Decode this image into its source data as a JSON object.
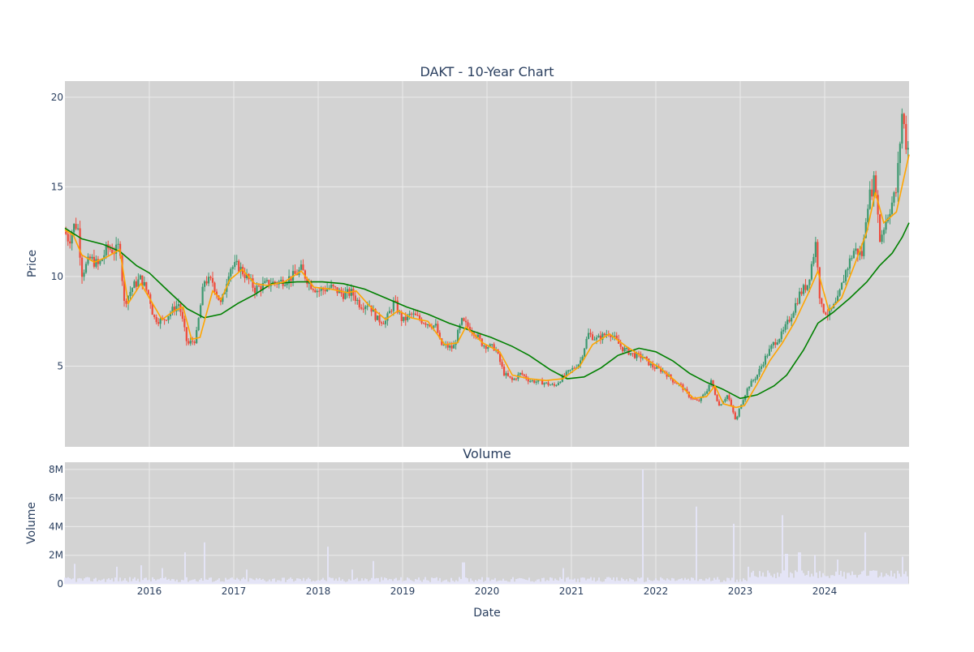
{
  "colors": {
    "plot_bg": "#d3d3d3",
    "grid": "#ebebeb",
    "candle_up": "#3d9970",
    "candle_down": "#ef4a3b",
    "ma_short": "#ffa500",
    "ma_long": "#008000",
    "volume": "#e6e6fa",
    "text": "#2a3f5f"
  },
  "chart_data": [
    {
      "type": "candlestick",
      "title": "DAKT - 10-Year Chart",
      "xlabel": "",
      "ylabel": "Price",
      "xlim": [
        2015.0,
        2025.0
      ],
      "ylim": [
        0.5,
        20.9
      ],
      "yticks": [
        5,
        10,
        15,
        20
      ],
      "grid": true,
      "legend": "none",
      "price_points": [
        [
          2015.0,
          12.5
        ],
        [
          2015.05,
          12.0
        ],
        [
          2015.1,
          12.8
        ],
        [
          2015.15,
          12.9
        ],
        [
          2015.2,
          10.2
        ],
        [
          2015.3,
          11.0
        ],
        [
          2015.4,
          10.6
        ],
        [
          2015.5,
          11.6
        ],
        [
          2015.6,
          11.4
        ],
        [
          2015.65,
          11.8
        ],
        [
          2015.7,
          8.5
        ],
        [
          2015.8,
          9.4
        ],
        [
          2015.9,
          9.9
        ],
        [
          2016.0,
          8.9
        ],
        [
          2016.05,
          7.7
        ],
        [
          2016.15,
          7.5
        ],
        [
          2016.25,
          8.0
        ],
        [
          2016.35,
          8.5
        ],
        [
          2016.45,
          6.2
        ],
        [
          2016.55,
          6.5
        ],
        [
          2016.65,
          9.8
        ],
        [
          2016.75,
          9.7
        ],
        [
          2016.85,
          8.4
        ],
        [
          2016.95,
          10.5
        ],
        [
          2017.05,
          10.6
        ],
        [
          2017.15,
          10.0
        ],
        [
          2017.25,
          9.3
        ],
        [
          2017.4,
          9.6
        ],
        [
          2017.55,
          9.7
        ],
        [
          2017.7,
          10.0
        ],
        [
          2017.8,
          10.4
        ],
        [
          2017.9,
          9.6
        ],
        [
          2018.0,
          9.2
        ],
        [
          2018.15,
          9.4
        ],
        [
          2018.3,
          9.0
        ],
        [
          2018.4,
          9.1
        ],
        [
          2018.5,
          8.4
        ],
        [
          2018.6,
          8.5
        ],
        [
          2018.7,
          7.6
        ],
        [
          2018.8,
          7.5
        ],
        [
          2018.9,
          8.6
        ],
        [
          2019.0,
          7.5
        ],
        [
          2019.1,
          7.9
        ],
        [
          2019.25,
          7.5
        ],
        [
          2019.4,
          7.2
        ],
        [
          2019.45,
          6.2
        ],
        [
          2019.6,
          6.0
        ],
        [
          2019.7,
          7.5
        ],
        [
          2019.85,
          6.9
        ],
        [
          2019.95,
          6.2
        ],
        [
          2020.1,
          6.0
        ],
        [
          2020.2,
          4.6
        ],
        [
          2020.3,
          4.2
        ],
        [
          2020.4,
          4.6
        ],
        [
          2020.5,
          4.2
        ],
        [
          2020.65,
          4.1
        ],
        [
          2020.8,
          3.9
        ],
        [
          2020.9,
          4.4
        ],
        [
          2021.0,
          4.8
        ],
        [
          2021.1,
          5.2
        ],
        [
          2021.2,
          6.8
        ],
        [
          2021.3,
          6.5
        ],
        [
          2021.45,
          6.9
        ],
        [
          2021.6,
          6.0
        ],
        [
          2021.75,
          5.6
        ],
        [
          2021.85,
          5.5
        ],
        [
          2021.95,
          5.0
        ],
        [
          2022.1,
          4.7
        ],
        [
          2022.2,
          4.2
        ],
        [
          2022.3,
          3.9
        ],
        [
          2022.4,
          3.3
        ],
        [
          2022.5,
          3.0
        ],
        [
          2022.6,
          3.6
        ],
        [
          2022.65,
          4.2
        ],
        [
          2022.75,
          2.8
        ],
        [
          2022.85,
          3.4
        ],
        [
          2022.95,
          1.9
        ],
        [
          2023.0,
          2.8
        ],
        [
          2023.1,
          3.9
        ],
        [
          2023.2,
          4.5
        ],
        [
          2023.3,
          5.5
        ],
        [
          2023.4,
          6.3
        ],
        [
          2023.5,
          6.8
        ],
        [
          2023.6,
          7.8
        ],
        [
          2023.7,
          9.0
        ],
        [
          2023.8,
          9.6
        ],
        [
          2023.9,
          12.0
        ],
        [
          2023.95,
          8.3
        ],
        [
          2024.05,
          7.9
        ],
        [
          2024.15,
          8.6
        ],
        [
          2024.25,
          10.3
        ],
        [
          2024.35,
          11.5
        ],
        [
          2024.45,
          11.2
        ],
        [
          2024.5,
          14.0
        ],
        [
          2024.6,
          15.5
        ],
        [
          2024.65,
          12.0
        ],
        [
          2024.75,
          13.5
        ],
        [
          2024.85,
          14.8
        ],
        [
          2024.92,
          19.3
        ],
        [
          2024.96,
          17.5
        ],
        [
          2025.0,
          17.0
        ]
      ],
      "ma_short": [
        [
          2015.0,
          12.6
        ],
        [
          2015.1,
          12.3
        ],
        [
          2015.2,
          11.2
        ],
        [
          2015.35,
          10.8
        ],
        [
          2015.5,
          11.1
        ],
        [
          2015.65,
          11.5
        ],
        [
          2015.75,
          8.5
        ],
        [
          2015.9,
          9.6
        ],
        [
          2016.05,
          8.4
        ],
        [
          2016.15,
          7.6
        ],
        [
          2016.3,
          8.1
        ],
        [
          2016.4,
          8.3
        ],
        [
          2016.5,
          6.5
        ],
        [
          2016.6,
          6.6
        ],
        [
          2016.75,
          9.2
        ],
        [
          2016.85,
          8.7
        ],
        [
          2016.95,
          9.8
        ],
        [
          2017.1,
          10.4
        ],
        [
          2017.25,
          9.6
        ],
        [
          2017.4,
          9.5
        ],
        [
          2017.6,
          9.7
        ],
        [
          2017.8,
          10.3
        ],
        [
          2017.95,
          9.4
        ],
        [
          2018.15,
          9.3
        ],
        [
          2018.35,
          9.1
        ],
        [
          2018.45,
          9.2
        ],
        [
          2018.6,
          8.4
        ],
        [
          2018.8,
          7.6
        ],
        [
          2018.95,
          8.1
        ],
        [
          2019.1,
          7.7
        ],
        [
          2019.3,
          7.5
        ],
        [
          2019.5,
          6.2
        ],
        [
          2019.65,
          6.3
        ],
        [
          2019.75,
          7.2
        ],
        [
          2019.95,
          6.3
        ],
        [
          2020.15,
          5.8
        ],
        [
          2020.3,
          4.5
        ],
        [
          2020.5,
          4.3
        ],
        [
          2020.7,
          4.2
        ],
        [
          2020.9,
          4.3
        ],
        [
          2021.1,
          5.0
        ],
        [
          2021.25,
          6.2
        ],
        [
          2021.45,
          6.8
        ],
        [
          2021.65,
          6.1
        ],
        [
          2021.85,
          5.5
        ],
        [
          2022.05,
          4.9
        ],
        [
          2022.25,
          4.1
        ],
        [
          2022.45,
          3.2
        ],
        [
          2022.6,
          3.3
        ],
        [
          2022.7,
          3.9
        ],
        [
          2022.8,
          2.9
        ],
        [
          2022.95,
          2.7
        ],
        [
          2023.05,
          2.8
        ],
        [
          2023.2,
          4.0
        ],
        [
          2023.35,
          5.3
        ],
        [
          2023.5,
          6.3
        ],
        [
          2023.65,
          7.5
        ],
        [
          2023.8,
          9.0
        ],
        [
          2023.92,
          10.3
        ],
        [
          2024.05,
          8.1
        ],
        [
          2024.2,
          8.8
        ],
        [
          2024.35,
          10.6
        ],
        [
          2024.5,
          12.5
        ],
        [
          2024.6,
          14.7
        ],
        [
          2024.7,
          13.0
        ],
        [
          2024.85,
          13.6
        ],
        [
          2025.0,
          16.8
        ]
      ],
      "ma_long": [
        [
          2015.0,
          12.7
        ],
        [
          2015.2,
          12.1
        ],
        [
          2015.45,
          11.8
        ],
        [
          2015.65,
          11.4
        ],
        [
          2015.85,
          10.6
        ],
        [
          2016.0,
          10.2
        ],
        [
          2016.2,
          9.3
        ],
        [
          2016.45,
          8.2
        ],
        [
          2016.65,
          7.7
        ],
        [
          2016.85,
          7.9
        ],
        [
          2017.05,
          8.5
        ],
        [
          2017.25,
          9.0
        ],
        [
          2017.45,
          9.6
        ],
        [
          2017.75,
          9.7
        ],
        [
          2018.05,
          9.7
        ],
        [
          2018.3,
          9.6
        ],
        [
          2018.55,
          9.3
        ],
        [
          2018.8,
          8.8
        ],
        [
          2019.05,
          8.3
        ],
        [
          2019.3,
          7.9
        ],
        [
          2019.55,
          7.4
        ],
        [
          2019.8,
          7.0
        ],
        [
          2020.05,
          6.6
        ],
        [
          2020.3,
          6.1
        ],
        [
          2020.5,
          5.6
        ],
        [
          2020.75,
          4.8
        ],
        [
          2020.95,
          4.3
        ],
        [
          2021.15,
          4.4
        ],
        [
          2021.35,
          4.9
        ],
        [
          2021.55,
          5.6
        ],
        [
          2021.8,
          6.0
        ],
        [
          2022.0,
          5.8
        ],
        [
          2022.2,
          5.3
        ],
        [
          2022.4,
          4.6
        ],
        [
          2022.6,
          4.1
        ],
        [
          2022.8,
          3.7
        ],
        [
          2023.0,
          3.2
        ],
        [
          2023.2,
          3.4
        ],
        [
          2023.4,
          3.9
        ],
        [
          2023.55,
          4.5
        ],
        [
          2023.75,
          5.9
        ],
        [
          2023.92,
          7.4
        ],
        [
          2024.1,
          8.0
        ],
        [
          2024.3,
          8.8
        ],
        [
          2024.5,
          9.7
        ],
        [
          2024.65,
          10.6
        ],
        [
          2024.8,
          11.3
        ],
        [
          2024.92,
          12.2
        ],
        [
          2025.0,
          13.0
        ]
      ]
    },
    {
      "type": "bar",
      "title": "Volume",
      "xlabel": "Date",
      "ylabel": "Volume",
      "xlim": [
        2015.0,
        2025.0
      ],
      "ylim": [
        0,
        8500000
      ],
      "yticks": [
        0,
        2000000,
        4000000,
        6000000,
        8000000
      ],
      "ytick_labels": [
        "0",
        "2M",
        "4M",
        "6M",
        "8M"
      ],
      "xticks": [
        2016,
        2017,
        2018,
        2019,
        2020,
        2021,
        2022,
        2023,
        2024
      ],
      "xtick_labels": [
        "2016",
        "2017",
        "2018",
        "2019",
        "2020",
        "2021",
        "2022",
        "2023",
        "2024"
      ],
      "grid": true,
      "baseline": 300000,
      "spikes": [
        [
          2015.12,
          1400000
        ],
        [
          2015.62,
          1200000
        ],
        [
          2015.9,
          1300000
        ],
        [
          2016.15,
          1100000
        ],
        [
          2016.42,
          2200000
        ],
        [
          2016.65,
          2900000
        ],
        [
          2017.15,
          1000000
        ],
        [
          2018.12,
          2600000
        ],
        [
          2018.4,
          1000000
        ],
        [
          2018.65,
          1600000
        ],
        [
          2019.72,
          1500000
        ],
        [
          2020.9,
          1100000
        ],
        [
          2021.85,
          8000000
        ],
        [
          2022.48,
          5400000
        ],
        [
          2022.92,
          4200000
        ],
        [
          2023.1,
          1200000
        ],
        [
          2023.5,
          4800000
        ],
        [
          2023.55,
          2100000
        ],
        [
          2023.7,
          2200000
        ],
        [
          2023.88,
          2000000
        ],
        [
          2024.15,
          1700000
        ],
        [
          2024.48,
          3600000
        ],
        [
          2024.92,
          1900000
        ]
      ]
    }
  ]
}
